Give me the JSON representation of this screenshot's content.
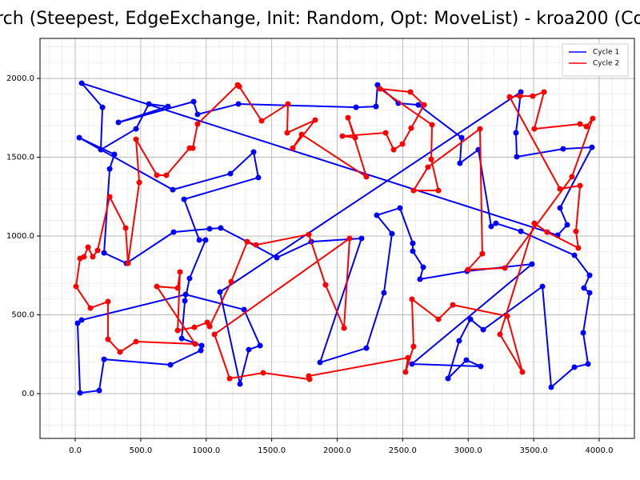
{
  "chart_data": {
    "type": "line",
    "title": "rch (Steepest, EdgeExchange, Init: Random, Opt: MoveList) - kroa200 (Co",
    "xlim": [
      -269,
      4269
    ],
    "ylim": [
      -284,
      2254
    ],
    "xticks": [
      {
        "value": 0,
        "label": "0.0"
      },
      {
        "value": 500,
        "label": "500.0"
      },
      {
        "value": 1000,
        "label": "1000.0"
      },
      {
        "value": 1500,
        "label": "1500.0"
      },
      {
        "value": 2000,
        "label": "2000.0"
      },
      {
        "value": 2500,
        "label": "2500.0"
      },
      {
        "value": 3000,
        "label": "3000.0"
      },
      {
        "value": 3500,
        "label": "3500.0"
      },
      {
        "value": 4000,
        "label": "4000.0"
      }
    ],
    "yticks": [
      {
        "value": 0,
        "label": "0.0"
      },
      {
        "value": 500,
        "label": "500.0"
      },
      {
        "value": 1000,
        "label": "1000.0"
      },
      {
        "value": 1500,
        "label": "1500.0"
      },
      {
        "value": 2000,
        "label": "2000.0"
      }
    ],
    "grid": true,
    "minor_grid": true,
    "closed": true,
    "legend": "upper right",
    "series": [
      {
        "name": "Cycle 1",
        "color": "#0000ff",
        "x": [
          49,
          208,
          195,
          464,
          562,
          708,
          330,
          904,
          934,
          1246,
          2144,
          2296,
          2308,
          2467,
          2620,
          2950,
          2937,
          3078,
          3176,
          3212,
          3402,
          3811,
          3927,
          3884,
          3927,
          3878,
          3915,
          3811,
          3634,
          3567,
          3115,
          3017,
          2931,
          2846,
          2986,
          3096,
          2571,
          3487,
          2992,
          2632,
          2657,
          2577,
          2577,
          2479,
          2302,
          2418,
          2357,
          2223,
          1869,
          2186,
          1802,
          1539,
          1313,
          1111,
          1026,
          751,
          391,
          220,
          263,
          299,
          31,
          745,
          1185,
          1362,
          1398,
          831,
          947,
          995,
          873,
          837,
          813,
          965,
          959,
          727,
          220,
          183,
          37,
          18,
          49,
          843,
          1289,
          1411,
          1325,
          1258,
          1105,
          3402,
          3365,
          3371,
          3725,
          3945,
          3701,
          3756,
          3683
        ],
        "values": [
          1970,
          1817,
          1548,
          1680,
          1838,
          1822,
          1721,
          1853,
          1772,
          1838,
          1817,
          1822,
          1959,
          1843,
          1832,
          1624,
          1462,
          1548,
          1061,
          1081,
          1030,
          878,
          751,
          670,
          640,
          386,
          188,
          168,
          41,
          680,
          406,
          472,
          335,
          96,
          213,
          173,
          188,
          822,
          777,
          726,
          802,
          904,
          954,
          1178,
          1132,
          1015,
          640,
          289,
          198,
          985,
          964,
          863,
          964,
          1051,
          1046,
          1025,
          827,
          893,
          1426,
          1518,
          1624,
          1294,
          1396,
          1533,
          1371,
          1233,
          975,
          975,
          731,
          589,
          350,
          305,
          274,
          183,
          218,
          20,
          5,
          447,
          467,
          629,
          533,
          305,
          279,
          61,
          645,
          1914,
          1655,
          1503,
          1553,
          1563,
          1178,
          1071,
          1005
        ]
      },
      {
        "name": "Cycle 2",
        "color": "#ff0000",
        "x": [
          6,
          37,
          67,
          98,
          134,
          171,
          263,
          385,
          403,
          489,
          464,
          623,
          696,
          873,
          898,
          934,
          1240,
          1252,
          1423,
          1624,
          1618,
          1832,
          1661,
          1728,
          2223,
          2083,
          2137,
          2040,
          2370,
          2431,
          2498,
          2565,
          2663,
          2559,
          2327,
          2724,
          2718,
          2773,
          2583,
          2693,
          3090,
          3108,
          2999,
          3280,
          3792,
          3951,
          3902,
          3854,
          3505,
          3579,
          3493,
          3395,
          3316,
          3701,
          3854,
          3823,
          3841,
          3603,
          3505,
          3243,
          3414,
          3298,
          2883,
          2773,
          2571,
          2583,
          2522,
          2541,
          1783,
          1789,
          1435,
          1179,
          1063,
          2095,
          2052,
          1911,
          1783,
          1380,
          1313,
          1191,
          1026,
          1008,
          910,
          782,
          800,
          782,
          623,
          916,
          464,
          342,
          250,
          250,
          116
        ],
        "values": [
          680,
          858,
          868,
          929,
          868,
          909,
          1249,
          1051,
          827,
          1340,
          1614,
          1386,
          1386,
          1558,
          1558,
          1711,
          1959,
          1949,
          1731,
          1838,
          1655,
          1736,
          1558,
          1645,
          1376,
          1751,
          1624,
          1634,
          1655,
          1548,
          1584,
          1685,
          1832,
          1914,
          1934,
          1706,
          1487,
          1289,
          1289,
          1437,
          1680,
          888,
          787,
          797,
          1376,
          1746,
          1695,
          1711,
          1680,
          1914,
          1888,
          1888,
          1883,
          1299,
          1320,
          1030,
          924,
          1025,
          1081,
          376,
          137,
          492,
          563,
          472,
          599,
          299,
          137,
          228,
          112,
          91,
          132,
          96,
          376,
          985,
          416,
          690,
          1010,
          944,
          964,
          711,
          426,
          452,
          421,
          401,
          772,
          670,
          680,
          315,
          330,
          264,
          345,
          584,
          543
        ]
      }
    ]
  }
}
